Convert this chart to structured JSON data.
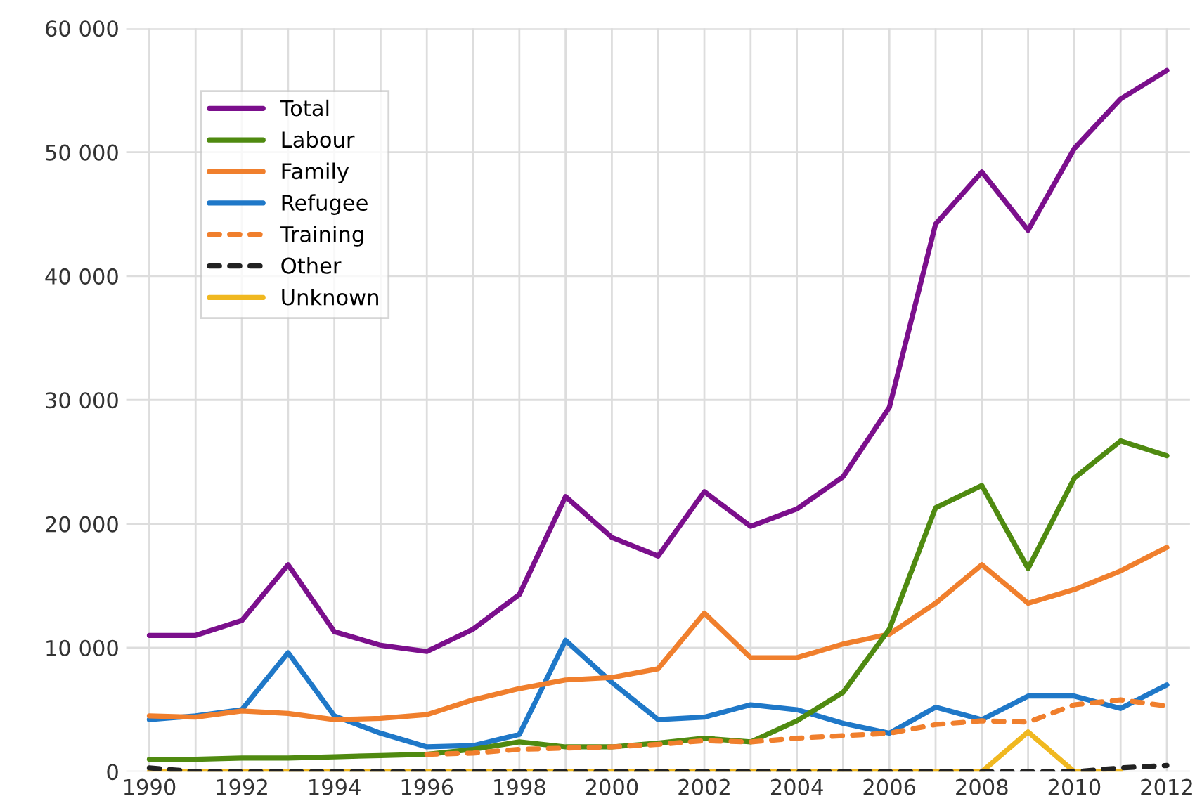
{
  "chart_data": {
    "type": "line",
    "x": [
      1990,
      1991,
      1992,
      1993,
      1994,
      1995,
      1996,
      1997,
      1998,
      1999,
      2000,
      2001,
      2002,
      2003,
      2004,
      2005,
      2006,
      2007,
      2008,
      2009,
      2010,
      2011,
      2012
    ],
    "series": [
      {
        "name": "Total",
        "color": "#7b0f8c",
        "values": [
          11000,
          11000,
          12200,
          16700,
          11300,
          10200,
          9700,
          11500,
          14300,
          22200,
          18900,
          17400,
          22600,
          19800,
          21200,
          23800,
          29400,
          44200,
          48400,
          43700,
          50300,
          54300,
          56600
        ]
      },
      {
        "name": "Labour",
        "color": "#4f8a10",
        "values": [
          1000,
          1000,
          1100,
          1100,
          1200,
          1300,
          1400,
          1800,
          2400,
          2000,
          2000,
          2300,
          2700,
          2400,
          4100,
          6400,
          11500,
          21300,
          23100,
          16400,
          23700,
          26700,
          25500
        ]
      },
      {
        "name": "Family",
        "color": "#f07f2d",
        "values": [
          4500,
          4400,
          4900,
          4700,
          4200,
          4300,
          4600,
          5800,
          6700,
          7400,
          7600,
          8300,
          12800,
          9200,
          9200,
          10300,
          11100,
          13600,
          16700,
          13600,
          14700,
          16200,
          18100
        ]
      },
      {
        "name": "Refugee",
        "color": "#1f78c8",
        "values": [
          4200,
          4500,
          5000,
          9600,
          4500,
          3100,
          2000,
          2100,
          3000,
          10600,
          7200,
          4200,
          4400,
          5400,
          5000,
          3900,
          3100,
          5200,
          4200,
          6100,
          6100,
          5100,
          7000
        ]
      },
      {
        "name": "Training",
        "color": "#f07f2d",
        "line_style": "dashed",
        "values": [
          null,
          null,
          null,
          null,
          null,
          null,
          1400,
          1500,
          1800,
          1900,
          2000,
          2200,
          2500,
          2400,
          2700,
          2900,
          3100,
          3800,
          4100,
          4000,
          5400,
          5800,
          5300
        ]
      },
      {
        "name": "Other",
        "color": "#222222",
        "line_style": "dashed",
        "values": [
          300,
          0,
          0,
          0,
          0,
          0,
          0,
          0,
          0,
          0,
          0,
          0,
          0,
          0,
          0,
          0,
          0,
          0,
          0,
          0,
          0,
          300,
          500
        ]
      },
      {
        "name": "Unknown",
        "color": "#f0b820",
        "values": [
          0,
          0,
          0,
          0,
          0,
          0,
          0,
          0,
          0,
          0,
          0,
          0,
          0,
          0,
          0,
          0,
          0,
          0,
          0,
          3200,
          0,
          0,
          null
        ]
      }
    ],
    "xlim": [
      1989.5,
      2012.5
    ],
    "xticks": [
      1990,
      {
        "value": 1991,
        "label": null
      },
      1992,
      {
        "value": 1993,
        "label": null
      },
      1994,
      {
        "value": 1995,
        "label": null
      },
      1996,
      {
        "value": 1997,
        "label": null
      },
      1998,
      {
        "value": 1999,
        "label": null
      },
      2000,
      {
        "value": 2001,
        "label": null
      },
      2002,
      {
        "value": 2003,
        "label": null
      },
      2004,
      {
        "value": 2005,
        "label": null
      },
      2006,
      {
        "value": 2007,
        "label": null
      },
      2008,
      {
        "value": 2009,
        "label": null
      },
      2010,
      {
        "value": 2011,
        "label": null
      },
      2012
    ],
    "ylim": [
      0,
      60000
    ],
    "yticks": [
      {
        "value": 0,
        "label": "0"
      },
      {
        "value": 10000,
        "label": "10 000"
      },
      {
        "value": 20000,
        "label": "20 000"
      },
      {
        "value": 30000,
        "label": "30 000"
      },
      {
        "value": 40000,
        "label": "40 000"
      },
      {
        "value": 50000,
        "label": "50 000"
      },
      {
        "value": 60000,
        "label": "60 000"
      }
    ],
    "grid": true,
    "legend": "top left"
  }
}
